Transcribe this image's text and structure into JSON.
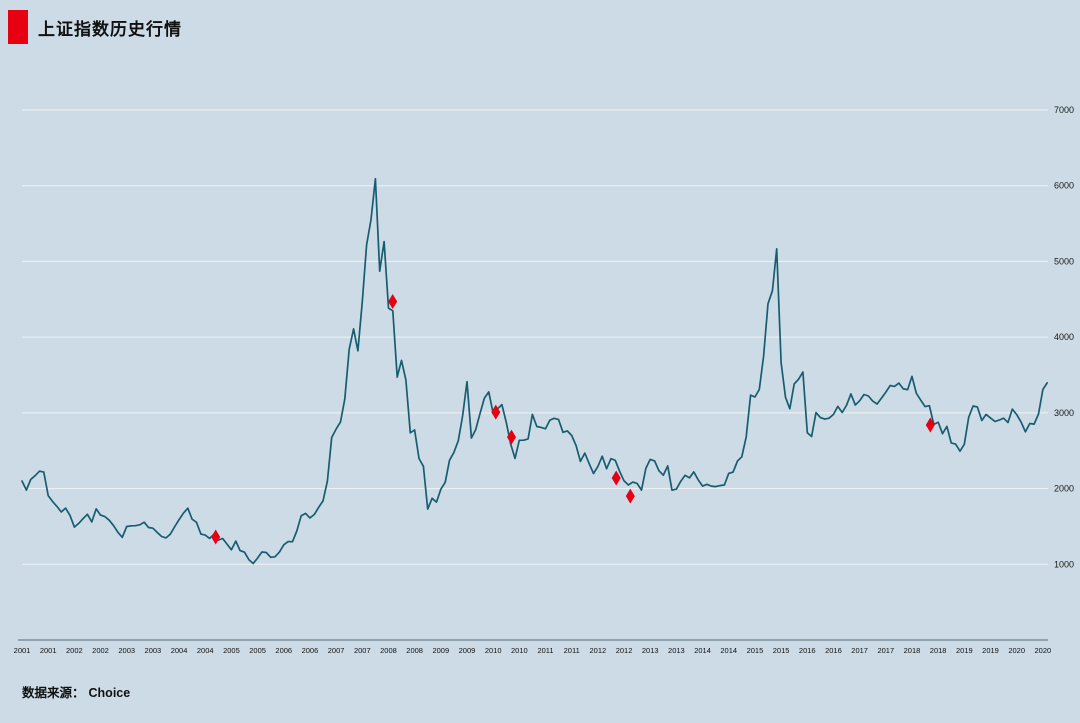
{
  "title": {
    "text": "上证指数历史行情"
  },
  "source": {
    "label": "数据来源：",
    "value": "Choice"
  },
  "chart_data": {
    "type": "line",
    "title": "上证指数历史行情",
    "line_color": "#175d70",
    "background": "#ccdbe5",
    "grid": true,
    "grid_color": "rgba(255,255,255,0.7)",
    "marker_color": "#e60012",
    "legend": "none",
    "y_axis": {
      "side": "right",
      "min": 0,
      "max": 7000,
      "tick_values": [
        1000,
        2000,
        3000,
        4000,
        5000,
        6000,
        7000
      ],
      "tick_labels": [
        "1000",
        "2000",
        "3000",
        "4000",
        "5000",
        "6000",
        "7000"
      ]
    },
    "x_axis": {
      "min": 2001,
      "max": 2020.56,
      "tick_start": 2001,
      "tick_step": 0.5,
      "tick_labels": [
        "2001",
        "2001",
        "2002",
        "2002",
        "2003",
        "2003",
        "2004",
        "2004",
        "2005",
        "2005",
        "2006",
        "2006",
        "2007",
        "2007",
        "2008",
        "2008",
        "2009",
        "2009",
        "2010",
        "2010",
        "2011",
        "2011",
        "2012",
        "2012",
        "2013",
        "2013",
        "2014",
        "2014",
        "2015",
        "2015",
        "2016",
        "2016",
        "2017",
        "2017",
        "2018",
        "2018",
        "2019",
        "2019",
        "2020",
        "2020"
      ]
    },
    "series": [
      {
        "name": "上证指数",
        "x_start": 2001.0,
        "x_step": 0.0833333,
        "values": [
          2100,
          1980,
          2120,
          2170,
          2230,
          2218,
          1907,
          1830,
          1765,
          1690,
          1742,
          1646,
          1491,
          1540,
          1603,
          1660,
          1560,
          1732,
          1650,
          1630,
          1581,
          1510,
          1421,
          1357,
          1499,
          1508,
          1510,
          1521,
          1556,
          1486,
          1477,
          1421,
          1367,
          1348,
          1397,
          1497,
          1590,
          1675,
          1741,
          1595,
          1555,
          1399,
          1386,
          1342,
          1396,
          1320,
          1340,
          1266,
          1191,
          1306,
          1181,
          1159,
          1060,
          1010,
          1083,
          1162,
          1155,
          1092,
          1099,
          1161,
          1258,
          1299,
          1298,
          1440,
          1641,
          1672,
          1613,
          1658,
          1752,
          1837,
          2099,
          2675,
          2786,
          2881,
          3183,
          3841,
          4109,
          3820,
          4471,
          5218,
          5552,
          6092,
          4871,
          5262,
          4383,
          4348,
          3472,
          3693,
          3433,
          2736,
          2775,
          2397,
          2294,
          1729,
          1871,
          1821,
          1991,
          2083,
          2373,
          2478,
          2632,
          2959,
          3412,
          2668,
          2779,
          2995,
          3195,
          3277,
          2989,
          3052,
          3109,
          2871,
          2592,
          2398,
          2638,
          2639,
          2656,
          2979,
          2820,
          2808,
          2790,
          2905,
          2928,
          2911,
          2743,
          2762,
          2701,
          2567,
          2359,
          2468,
          2333,
          2199,
          2293,
          2428,
          2262,
          2396,
          2372,
          2225,
          2103,
          2047,
          2086,
          2068,
          1980,
          2269,
          2385,
          2365,
          2236,
          2177,
          2300,
          1979,
          1993,
          2098,
          2175,
          2141,
          2220,
          2116,
          2033,
          2056,
          2033,
          2026,
          2039,
          2048,
          2201,
          2217,
          2364,
          2420,
          2683,
          3235,
          3210,
          3310,
          3748,
          4442,
          4612,
          5166,
          3664,
          3206,
          3053,
          3383,
          3445,
          3539,
          2738,
          2688,
          3004,
          2938,
          2917,
          2930,
          2979,
          3085,
          3005,
          3100,
          3250,
          3104,
          3159,
          3242,
          3223,
          3155,
          3117,
          3192,
          3273,
          3361,
          3349,
          3393,
          3317,
          3307,
          3481,
          3259,
          3169,
          3082,
          3095,
          2847,
          2876,
          2725,
          2821,
          2603,
          2588,
          2494,
          2585,
          2941,
          3091,
          3078,
          2899,
          2979,
          2933,
          2886,
          2905,
          2929,
          2872,
          3050,
          2977,
          2880,
          2750,
          2860,
          2852,
          2985,
          3310,
          3396
        ]
      }
    ],
    "markers": {
      "shape": "diamond",
      "color": "#e60012",
      "points": [
        {
          "x": 2004.7,
          "value": 1360
        },
        {
          "x": 2008.08,
          "value": 4470
        },
        {
          "x": 2010.05,
          "value": 3010
        },
        {
          "x": 2010.35,
          "value": 2680
        },
        {
          "x": 2012.35,
          "value": 2140
        },
        {
          "x": 2012.62,
          "value": 1900
        },
        {
          "x": 2018.35,
          "value": 2840
        }
      ]
    }
  }
}
